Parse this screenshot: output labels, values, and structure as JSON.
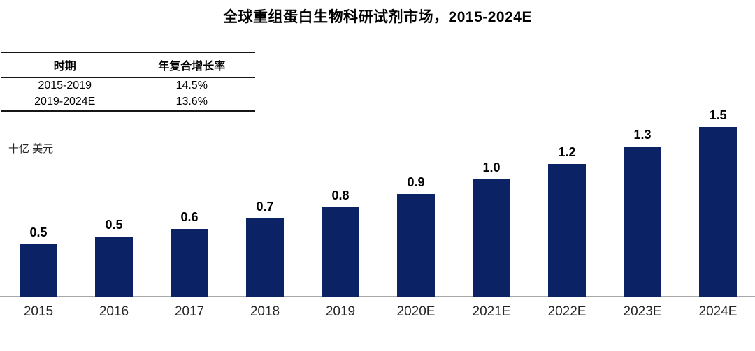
{
  "title": "全球重组蛋白生物科研试剂市场，2015-2024E",
  "cagr_table": {
    "headers": [
      "时期",
      "年复合增长率"
    ],
    "rows": [
      {
        "period": "2015-2019",
        "cagr": "14.5%"
      },
      {
        "period": "2019-2024E",
        "cagr": "13.6%"
      }
    ]
  },
  "unit_label": "十亿 美元",
  "colors": {
    "bar": "#0b2265",
    "axis_line": "#a8a8a8",
    "title_text": "#000000",
    "label_text": "#262626"
  },
  "chart_data": {
    "type": "bar",
    "title": "全球重组蛋白生物科研试剂市场，2015-2024E",
    "categories": [
      "2015",
      "2016",
      "2017",
      "2018",
      "2019",
      "2020E",
      "2021E",
      "2022E",
      "2023E",
      "2024E"
    ],
    "values": [
      0.5,
      0.5,
      0.6,
      0.7,
      0.8,
      0.9,
      1.0,
      1.2,
      1.3,
      1.5
    ],
    "bar_labels": [
      "0.5",
      "0.5",
      "0.6",
      "0.7",
      "0.8",
      "0.9",
      "1.0",
      "1.2",
      "1.3",
      "1.5"
    ],
    "values_precise_est": [
      0.46,
      0.53,
      0.6,
      0.69,
      0.79,
      0.91,
      1.04,
      1.17,
      1.33,
      1.5
    ],
    "xlabel": "",
    "ylabel": "十亿 美元",
    "ylim": [
      0,
      1.6
    ],
    "grid": false,
    "legend": false,
    "bar_color": "#0b2265",
    "annotations": {
      "cagr_2015_2019": "14.5%",
      "cagr_2019_2024E": "13.6%"
    }
  }
}
